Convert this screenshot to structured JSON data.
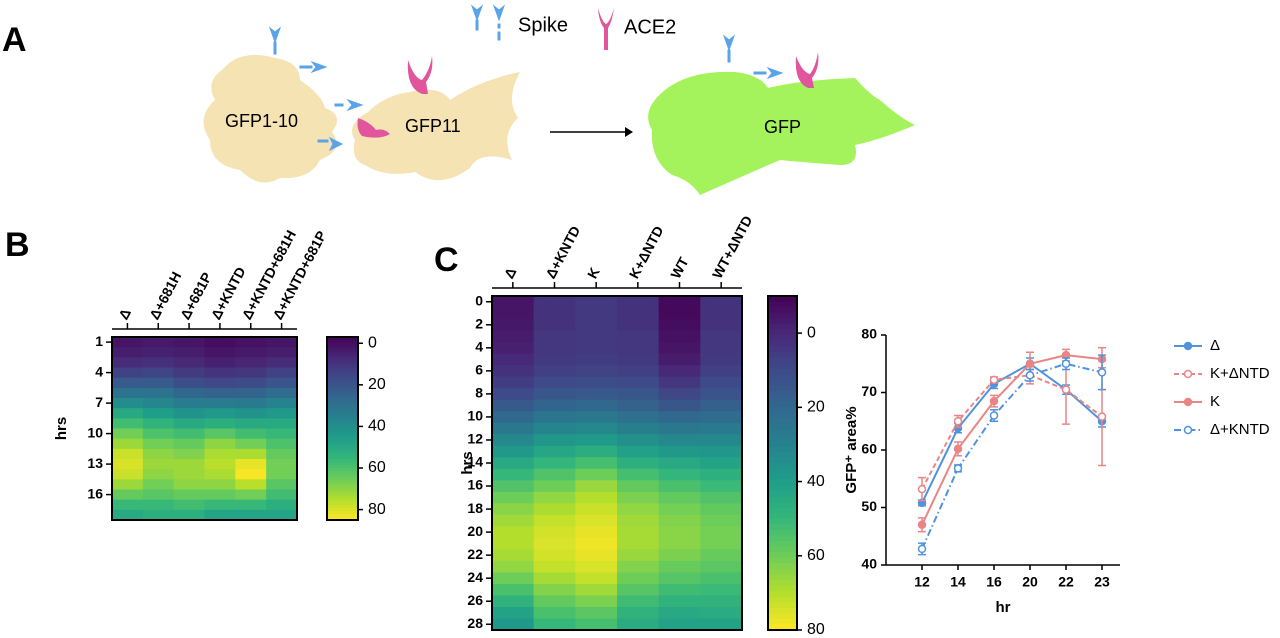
{
  "panel_labels": [
    "A",
    "B",
    "C"
  ],
  "diagram": {
    "legend": [
      "Spike",
      "ACE2"
    ],
    "cells": [
      "GFP1-10",
      "GFP11",
      "GFP"
    ]
  },
  "chart_data": [
    {
      "type": "heatmap",
      "ylabel": "hrs",
      "categories": [
        "Δ",
        "Δ+681H",
        "Δ+681P",
        "Δ+KNTD",
        "Δ+KNTD+681H",
        "Δ+KNTD+681P"
      ],
      "rows": [
        1,
        null,
        null,
        4,
        null,
        null,
        7,
        null,
        null,
        10,
        null,
        null,
        13,
        null,
        null,
        16,
        null,
        null
      ],
      "values": [
        [
          2,
          4,
          8,
          14,
          22,
          30,
          40,
          50,
          58,
          66,
          72,
          78,
          80,
          78,
          72,
          64,
          56,
          50
        ],
        [
          3,
          5,
          9,
          15,
          22,
          30,
          38,
          46,
          54,
          60,
          66,
          70,
          72,
          70,
          66,
          62,
          56,
          52
        ],
        [
          2,
          4,
          7,
          12,
          18,
          26,
          34,
          42,
          50,
          58,
          64,
          68,
          72,
          72,
          70,
          64,
          58,
          52
        ],
        [
          0,
          2,
          5,
          10,
          16,
          24,
          34,
          44,
          52,
          62,
          70,
          74,
          76,
          74,
          70,
          64,
          56,
          48
        ],
        [
          1,
          3,
          6,
          11,
          17,
          25,
          33,
          42,
          50,
          58,
          66,
          74,
          82,
          84,
          76,
          66,
          56,
          48
        ],
        [
          2,
          4,
          8,
          14,
          20,
          28,
          36,
          44,
          50,
          56,
          60,
          64,
          66,
          66,
          62,
          58,
          52,
          48
        ]
      ],
      "clim": [
        -3,
        85
      ],
      "cticks": [
        0,
        20,
        40,
        60,
        80
      ],
      "colormap": "viridis"
    },
    {
      "type": "heatmap",
      "ylabel": "hrs",
      "categories": [
        "Δ",
        "Δ+KNTD",
        "K",
        "K+ΔNTD",
        "WT",
        "WT+ΔNTD"
      ],
      "rows": [
        0,
        null,
        2,
        null,
        4,
        null,
        6,
        null,
        8,
        null,
        10,
        null,
        12,
        null,
        14,
        null,
        16,
        null,
        18,
        null,
        20,
        null,
        22,
        null,
        24,
        null,
        26,
        null,
        28
      ],
      "values": [
        [
          -5,
          -5,
          -4,
          -3,
          -2,
          0,
          3,
          6,
          10,
          15,
          20,
          26,
          32,
          38,
          44,
          50,
          55,
          60,
          64,
          67,
          70,
          70,
          68,
          65,
          60,
          54,
          48,
          42,
          38
        ],
        [
          3,
          3,
          3,
          4,
          4,
          5,
          7,
          10,
          14,
          19,
          25,
          31,
          37,
          43,
          49,
          55,
          60,
          65,
          69,
          72,
          74,
          75,
          74,
          72,
          68,
          63,
          58,
          54,
          50
        ],
        [
          5,
          5,
          5,
          5,
          5,
          6,
          8,
          11,
          15,
          20,
          26,
          32,
          39,
          46,
          53,
          60,
          66,
          70,
          73,
          75,
          77,
          78,
          77,
          75,
          72,
          67,
          62,
          57,
          53
        ],
        [
          3,
          3,
          3,
          4,
          4,
          5,
          7,
          10,
          14,
          18,
          23,
          29,
          35,
          41,
          47,
          53,
          58,
          62,
          65,
          67,
          68,
          68,
          66,
          63,
          60,
          56,
          52,
          48,
          45
        ],
        [
          -8,
          -8,
          -7,
          -6,
          -5,
          -3,
          0,
          4,
          9,
          14,
          20,
          26,
          32,
          38,
          44,
          49,
          54,
          58,
          61,
          63,
          64,
          64,
          62,
          59,
          56,
          52,
          48,
          44,
          42
        ],
        [
          3,
          3,
          3,
          4,
          4,
          5,
          7,
          10,
          13,
          17,
          22,
          27,
          32,
          37,
          42,
          47,
          51,
          55,
          58,
          60,
          61,
          61,
          59,
          57,
          54,
          51,
          48,
          45,
          42
        ]
      ],
      "clim": [
        -10,
        80
      ],
      "cticks": [
        0,
        20,
        40,
        60,
        80
      ],
      "colormap": "viridis"
    },
    {
      "type": "line",
      "xlabel": "hr",
      "ylabel": "GFP⁺ area%",
      "categories": [
        12,
        14,
        16,
        20,
        22,
        23
      ],
      "ylim": [
        40,
        80
      ],
      "yticks": [
        40,
        50,
        60,
        70,
        80
      ],
      "series": [
        {
          "name": "Δ",
          "color": "#4f93de",
          "style": "solid",
          "marker": "filled",
          "values": [
            50.8,
            63.8,
            71.5,
            75,
            70.5,
            65
          ],
          "errors": [
            0.5,
            0.8,
            0.8,
            1,
            0.8,
            1
          ]
        },
        {
          "name": "K+ΔNTD",
          "color": "#e98585",
          "style": "dashed",
          "marker": "open",
          "values": [
            53.2,
            65,
            72.2,
            73,
            70.5,
            65.8
          ],
          "errors": [
            2,
            1,
            0.5,
            1.5,
            6,
            8.5
          ]
        },
        {
          "name": "K",
          "color": "#e98585",
          "style": "solid",
          "marker": "filled",
          "values": [
            47,
            60.2,
            68.5,
            75,
            76.5,
            75.8
          ],
          "errors": [
            1.2,
            1.2,
            1,
            2,
            1,
            2
          ]
        },
        {
          "name": "Δ+KNTD",
          "color": "#4f93de",
          "style": "dashdot",
          "marker": "open",
          "values": [
            42.8,
            56.8,
            66,
            73,
            75,
            73.5
          ],
          "errors": [
            1,
            0.6,
            1,
            1,
            1,
            3
          ]
        }
      ]
    }
  ]
}
